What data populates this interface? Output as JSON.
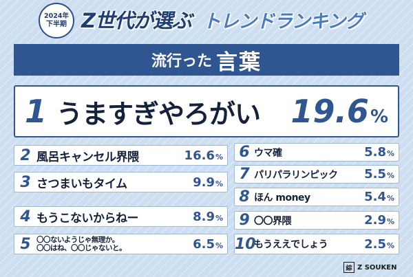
{
  "header": {
    "badge_year": "2024年",
    "badge_half": "下半期",
    "title_main": "Z世代が選ぶ",
    "title_sub": "トレンドランキング"
  },
  "category": {
    "prefix": "流行った",
    "main": "言葉"
  },
  "rank1": {
    "rank": "1",
    "word": "うますぎやろがい",
    "percent": "19.6",
    "unit": "%"
  },
  "left_ranks": [
    {
      "rank": "2",
      "word": "風呂キャンセル界隈",
      "percent": "16.6",
      "unit": "%"
    },
    {
      "rank": "3",
      "word": "さつまいもタイム",
      "percent": "9.9",
      "unit": "%"
    },
    {
      "rank": "4",
      "word": "もうこないからねー",
      "percent": "8.9",
      "unit": "%"
    },
    {
      "rank": "5",
      "word_line1": "〇〇ないようじゃ無理か。",
      "word_line2": "〇〇はね、〇〇じゃないと。",
      "percent": "6.5",
      "unit": "%"
    }
  ],
  "right_ranks": [
    {
      "rank": "6",
      "word": "ウマ確",
      "percent": "5.8",
      "unit": "%"
    },
    {
      "rank": "7",
      "word": "パリパラリンピック",
      "percent": "5.5",
      "unit": "%"
    },
    {
      "rank": "8",
      "word": "ほん money",
      "percent": "5.4",
      "unit": "%"
    },
    {
      "rank": "9",
      "word": "〇〇界隈",
      "percent": "2.9",
      "unit": "%"
    },
    {
      "rank": "10",
      "word": "もうええでしょう",
      "percent": "2.5",
      "unit": "%"
    }
  ],
  "logo": {
    "mark": "綜",
    "text": "Z SOUKEN"
  },
  "colors": {
    "primary": "#2f5690",
    "dark_text": "#14213a",
    "background": "#ccdef0",
    "white": "#ffffff"
  }
}
